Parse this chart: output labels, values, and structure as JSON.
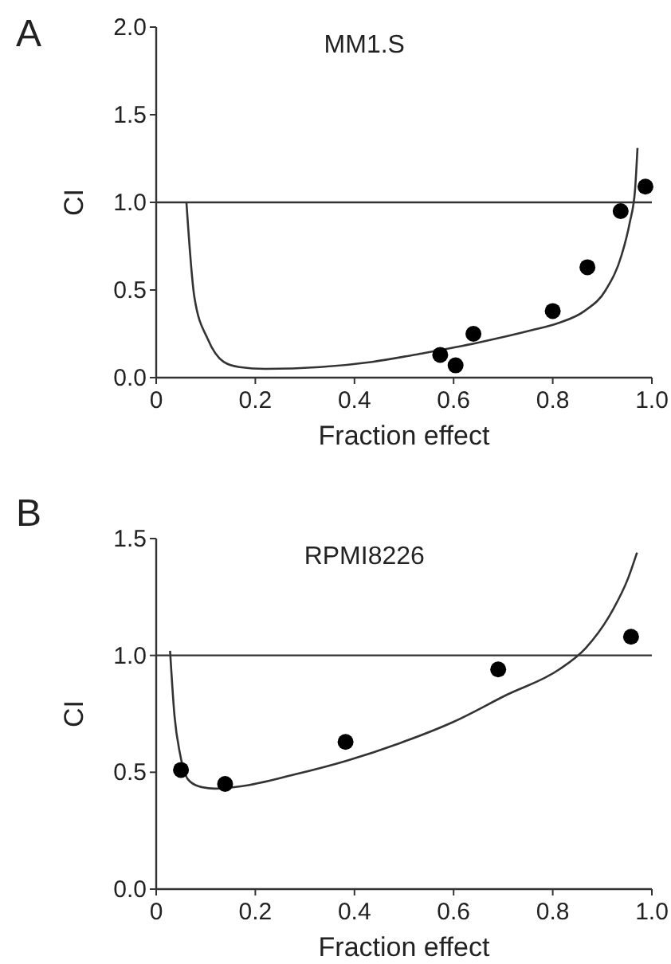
{
  "chart_data": [
    {
      "type": "scatter",
      "title": "MM1.S",
      "xlabel": "Fraction effect",
      "ylabel": "CI",
      "annotations": [
        "A"
      ],
      "xlim": [
        0,
        1
      ],
      "ylim": [
        0,
        2
      ],
      "xticks": [
        0,
        0.2,
        0.4,
        0.6,
        0.8,
        {
          "value": 1,
          "label": "1.0"
        }
      ],
      "yticks": [
        {
          "value": 0,
          "label": "0.0"
        },
        {
          "value": 0.5,
          "label": "0.5"
        },
        {
          "value": 1,
          "label": "1.0"
        },
        {
          "value": 1.5,
          "label": "1.5"
        },
        {
          "value": 2,
          "label": "2.0"
        }
      ],
      "ref_lines": [
        {
          "axis": "y",
          "value": 1,
          "color": "#333333"
        }
      ],
      "series": [
        {
          "type": "line",
          "color": "#333333",
          "marker": "none",
          "x": [
            0.061,
            0.077,
            0.104,
            0.136,
            0.168,
            0.22,
            0.33,
            0.436,
            0.54,
            0.65,
            0.757,
            0.81,
            0.864,
            0.907,
            0.939,
            0.955,
            0.966,
            0.971
          ],
          "values": [
            1.0,
            0.46,
            0.22,
            0.09,
            0.06,
            0.05,
            0.06,
            0.09,
            0.14,
            0.2,
            0.27,
            0.31,
            0.38,
            0.5,
            0.7,
            0.88,
            1.07,
            1.31
          ]
        },
        {
          "color": "#000000",
          "marker": "circle",
          "x": [
            0.573,
            0.604,
            0.64,
            0.8,
            0.87,
            0.937,
            0.987
          ],
          "values": [
            0.13,
            0.07,
            0.25,
            0.38,
            0.63,
            0.95,
            1.09
          ]
        }
      ]
    },
    {
      "type": "scatter",
      "title": "RPMI8226",
      "xlabel": "Fraction effect",
      "ylabel": "CI",
      "annotations": [
        "B"
      ],
      "xlim": [
        0,
        1
      ],
      "ylim": [
        0,
        1.5
      ],
      "xticks": [
        0,
        0.2,
        0.4,
        0.6,
        0.8,
        {
          "value": 1,
          "label": "1.0"
        }
      ],
      "yticks": [
        {
          "value": 0,
          "label": "0.0"
        },
        {
          "value": 0.5,
          "label": "0.5"
        },
        {
          "value": 1,
          "label": "1.0"
        },
        {
          "value": 1.5,
          "label": "1.5"
        }
      ],
      "ref_lines": [
        {
          "axis": "y",
          "value": 1,
          "color": "#333333"
        }
      ],
      "series": [
        {
          "type": "line",
          "color": "#333333",
          "marker": "none",
          "x": [
            0.028,
            0.037,
            0.048,
            0.064,
            0.086,
            0.118,
            0.171,
            0.278,
            0.385,
            0.492,
            0.6,
            0.706,
            0.813,
            0.866,
            0.92,
            0.952,
            0.97
          ],
          "values": [
            1.02,
            0.74,
            0.58,
            0.47,
            0.44,
            0.43,
            0.44,
            0.49,
            0.55,
            0.625,
            0.716,
            0.83,
            0.94,
            1.03,
            1.19,
            1.33,
            1.44
          ]
        },
        {
          "color": "#000000",
          "marker": "circle",
          "x": [
            0.05,
            0.139,
            0.382,
            0.69,
            0.958
          ],
          "values": [
            0.51,
            0.45,
            0.63,
            0.94,
            1.08
          ]
        }
      ]
    }
  ]
}
